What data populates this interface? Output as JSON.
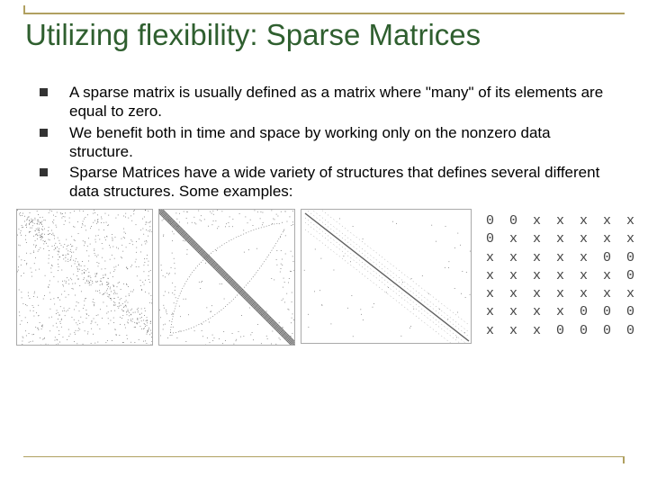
{
  "title": "Utilizing flexibility: Sparse Matrices",
  "bullets": [
    " A sparse matrix is usually defined as a matrix where \"many\" of its elements are equal to zero.",
    " We benefit both in time and space by working only on the nonzero data structure.",
    " Sparse Matrices have a wide variety of structures that defines several different data structures. Some examples:"
  ],
  "colors": {
    "rule": "#b0a060",
    "title": "#2f5f2f",
    "text": "#000000",
    "matrix_text": "#444444",
    "stroke": "#606060"
  },
  "sparse_panels": [
    {
      "type": "scatter",
      "width": 152,
      "height": 152,
      "n_points": 900
    },
    {
      "type": "outline_diag",
      "width": 152,
      "height": 152
    },
    {
      "type": "diagonal_wide",
      "width": 190,
      "height": 150
    }
  ],
  "matrix_rows": [
    "0 0 x x x x x",
    "0 x x x x x x",
    "x x x x x 0 0",
    "x x x x x x 0",
    "x x x x x x x",
    "x x x x 0 0 0",
    "x x x 0 0 0 0"
  ]
}
